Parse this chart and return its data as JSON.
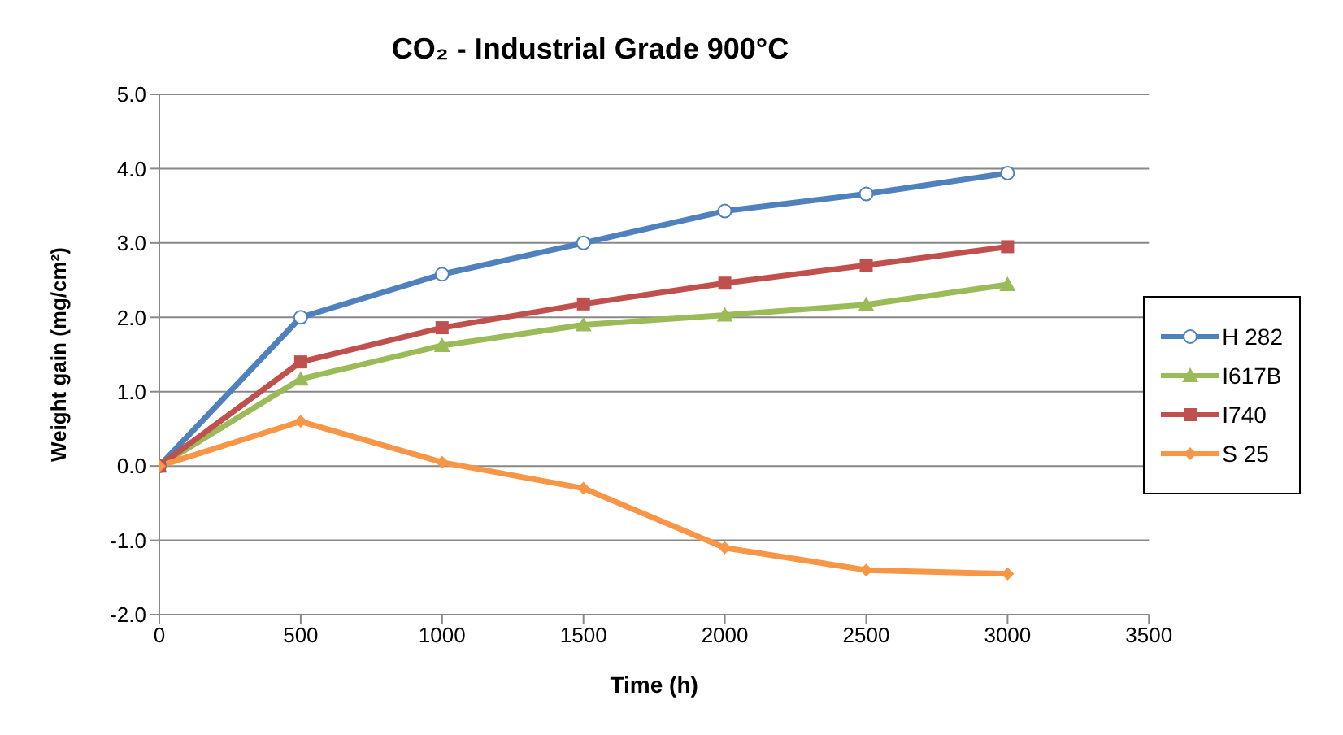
{
  "chart_data": {
    "type": "line",
    "title": "CO₂ - Industrial Grade 900°C",
    "xlabel": "Time (h)",
    "ylabel": "Weight gain (mg/cm²)",
    "x": [
      0,
      500,
      1000,
      1500,
      2000,
      2500,
      3000
    ],
    "series": [
      {
        "name": "H 282",
        "color": "#4f81bd",
        "marker": "circle",
        "values": [
          0,
          2.0,
          2.58,
          3.0,
          3.43,
          3.66,
          3.94
        ]
      },
      {
        "name": "I617B",
        "color": "#9bbb59",
        "marker": "triangle",
        "values": [
          0,
          1.17,
          1.62,
          1.9,
          2.03,
          2.17,
          2.44
        ]
      },
      {
        "name": "I740",
        "color": "#c0504d",
        "marker": "square",
        "values": [
          0,
          1.4,
          1.86,
          2.18,
          2.46,
          2.7,
          2.95
        ]
      },
      {
        "name": "S 25",
        "color": "#f79646",
        "marker": "diamond",
        "values": [
          0,
          0.6,
          0.05,
          -0.3,
          -1.1,
          -1.4,
          -1.45
        ]
      }
    ],
    "xlim": [
      0,
      3500
    ],
    "xticks": [
      0,
      500,
      1000,
      1500,
      2000,
      2500,
      3000,
      3500
    ],
    "ylim": [
      -2,
      5
    ],
    "yticks": [
      {
        "value": -2,
        "label": "-2.0"
      },
      {
        "value": -1,
        "label": "-1.0"
      },
      {
        "value": 0,
        "label": "0.0"
      },
      {
        "value": 1,
        "label": "1.0"
      },
      {
        "value": 2,
        "label": "2.0"
      },
      {
        "value": 3,
        "label": "3.0"
      },
      {
        "value": 4,
        "label": "4.0"
      },
      {
        "value": 5,
        "label": "5.0"
      }
    ],
    "grid": "y",
    "legend": "right",
    "line_style": "solid"
  }
}
